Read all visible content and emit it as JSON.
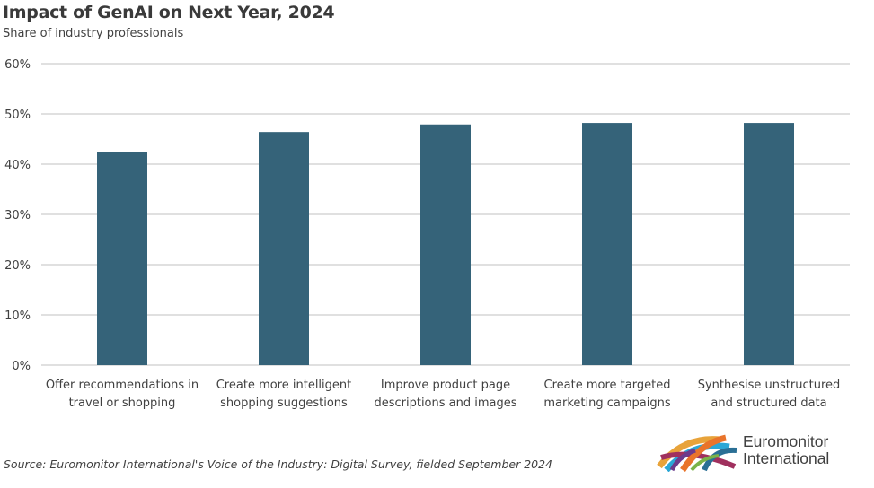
{
  "header": {
    "title": "Impact of GenAI on Next Year, 2024",
    "subtitle": "Share of industry professionals"
  },
  "footer": {
    "source": "Source: Euromonitor International's Voice of the Industry: Digital Survey, fielded September 2024"
  },
  "logo": {
    "line1": "Euromonitor",
    "line2": "International"
  },
  "chart_data": {
    "type": "bar",
    "title": "Impact of GenAI on Next Year, 2024",
    "subtitle": "Share of industry professionals",
    "xlabel": "",
    "ylabel": "",
    "ylim": [
      0,
      60
    ],
    "yticks": [
      0,
      10,
      20,
      30,
      40,
      50,
      60
    ],
    "ytick_labels": [
      "0%",
      "10%",
      "20%",
      "30%",
      "40%",
      "50%",
      "60%"
    ],
    "grid": true,
    "legend": "none",
    "bar_color": "#356379",
    "categories": [
      [
        "Offer recommendations in",
        "travel or shopping"
      ],
      [
        "Create more intelligent",
        "shopping suggestions"
      ],
      [
        "Improve product page",
        "descriptions and images"
      ],
      [
        "Create more targeted",
        "marketing campaigns"
      ],
      [
        "Synthesise unstructured",
        "and structured data"
      ]
    ],
    "values": [
      42.5,
      46.4,
      47.9,
      48.2,
      48.2
    ]
  }
}
